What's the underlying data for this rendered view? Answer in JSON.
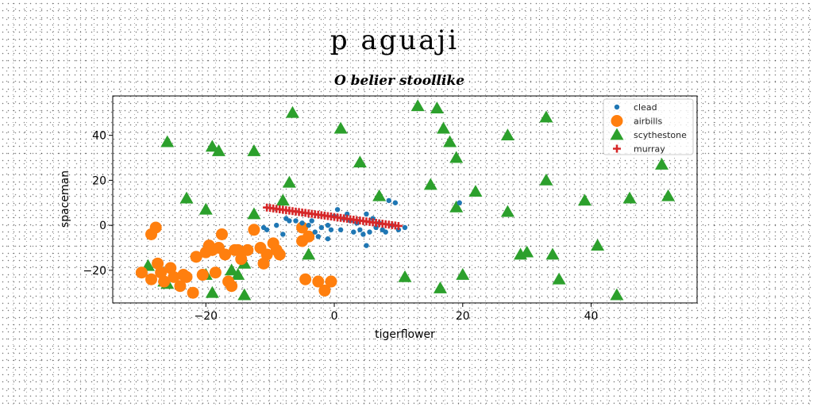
{
  "chart_data": {
    "type": "scatter",
    "title": "p aguaji",
    "subtitle": "O belier stoollike",
    "xlabel": "tigerflower",
    "ylabel": "spaceman",
    "xlim": [
      -34.5,
      56.5
    ],
    "ylim": [
      -34.5,
      57.5
    ],
    "xticks": [
      -20,
      0,
      20,
      40
    ],
    "yticks": [
      -20,
      0,
      20,
      40
    ],
    "legend_position": "top-right",
    "series": [
      {
        "name": "clead",
        "marker": "circle-small",
        "color": "#1f77b4",
        "points": [
          [
            -11,
            -1
          ],
          [
            -10.5,
            -2
          ],
          [
            -9,
            0
          ],
          [
            -8,
            -4
          ],
          [
            -7.5,
            3
          ],
          [
            -7,
            2
          ],
          [
            -6,
            2
          ],
          [
            -5,
            1
          ],
          [
            -4,
            0
          ],
          [
            -3.5,
            2
          ],
          [
            -3,
            -3
          ],
          [
            -2,
            -1
          ],
          [
            -1,
            0
          ],
          [
            -0.5,
            -2
          ],
          [
            0,
            4
          ],
          [
            0.5,
            7
          ],
          [
            1,
            -2
          ],
          [
            2,
            5
          ],
          [
            2.5,
            2
          ],
          [
            3,
            -3
          ],
          [
            3.5,
            1
          ],
          [
            4,
            -2
          ],
          [
            4.5,
            -4
          ],
          [
            5,
            5
          ],
          [
            5.5,
            -3
          ],
          [
            6,
            3
          ],
          [
            6.5,
            -1
          ],
          [
            7,
            1
          ],
          [
            7.5,
            -2
          ],
          [
            8,
            -3
          ],
          [
            8.5,
            11
          ],
          [
            9,
            0
          ],
          [
            9.5,
            10
          ],
          [
            10,
            -2
          ],
          [
            11,
            -1
          ],
          [
            -2.5,
            -5
          ],
          [
            -1,
            -6
          ],
          [
            5,
            -9
          ],
          [
            1.5,
            3
          ],
          [
            19.5,
            10
          ]
        ]
      },
      {
        "name": "airbills",
        "marker": "circle",
        "color": "#ff7f0e",
        "points": [
          [
            -30,
            -21
          ],
          [
            -28.5,
            -24
          ],
          [
            -28.5,
            -4
          ],
          [
            -27.8,
            -1
          ],
          [
            -27.5,
            -17
          ],
          [
            -27,
            -21
          ],
          [
            -26.5,
            -25
          ],
          [
            -25.5,
            -19
          ],
          [
            -25,
            -23
          ],
          [
            -24,
            -27
          ],
          [
            -23.5,
            -22
          ],
          [
            -23,
            -23
          ],
          [
            -22,
            -30
          ],
          [
            -21.5,
            -14
          ],
          [
            -20.5,
            -22
          ],
          [
            -20,
            -12
          ],
          [
            -19.5,
            -9
          ],
          [
            -19,
            -11
          ],
          [
            -18.5,
            -21
          ],
          [
            -18,
            -10
          ],
          [
            -17.5,
            -4
          ],
          [
            -17,
            -13
          ],
          [
            -16.5,
            -25
          ],
          [
            -16,
            -27
          ],
          [
            -15.5,
            -11
          ],
          [
            -15,
            -11
          ],
          [
            -14.5,
            -15
          ],
          [
            -13.5,
            -11
          ],
          [
            -12.5,
            -2
          ],
          [
            -11.5,
            -10
          ],
          [
            -11,
            -17
          ],
          [
            -10.5,
            -13
          ],
          [
            -9.5,
            -8
          ],
          [
            -9,
            -11
          ],
          [
            -8.5,
            -13
          ],
          [
            -5,
            -1
          ],
          [
            -5,
            -7
          ],
          [
            -4.5,
            -24
          ],
          [
            -4,
            -5
          ],
          [
            -2.5,
            -25
          ],
          [
            -1.5,
            -29
          ],
          [
            -0.5,
            -25
          ]
        ]
      },
      {
        "name": "scythestone",
        "marker": "triangle",
        "color": "#2ca02c",
        "points": [
          [
            -29,
            -18
          ],
          [
            -26.5,
            -25
          ],
          [
            -26,
            37
          ],
          [
            -26,
            -26
          ],
          [
            -23,
            12
          ],
          [
            -20,
            7
          ],
          [
            -20,
            -22
          ],
          [
            -19,
            -30
          ],
          [
            -19,
            35
          ],
          [
            -18,
            33
          ],
          [
            -16,
            -20
          ],
          [
            -15,
            -22
          ],
          [
            -14,
            -31
          ],
          [
            -14,
            -17
          ],
          [
            -12.5,
            33
          ],
          [
            -12.5,
            5
          ],
          [
            -8,
            11
          ],
          [
            -7,
            19
          ],
          [
            -6.5,
            50
          ],
          [
            -4,
            -13
          ],
          [
            1,
            43
          ],
          [
            4,
            28
          ],
          [
            7,
            13
          ],
          [
            11,
            -23
          ],
          [
            13,
            53
          ],
          [
            15,
            18
          ],
          [
            16,
            52
          ],
          [
            16.5,
            -28
          ],
          [
            17,
            43
          ],
          [
            18,
            37
          ],
          [
            19,
            30
          ],
          [
            19,
            8
          ],
          [
            20,
            -22
          ],
          [
            22,
            15
          ],
          [
            27,
            40
          ],
          [
            27,
            6
          ],
          [
            29,
            -13
          ],
          [
            30,
            -12
          ],
          [
            33,
            48
          ],
          [
            33,
            20
          ],
          [
            34,
            -13
          ],
          [
            35,
            -24
          ],
          [
            39,
            11
          ],
          [
            41,
            -9
          ],
          [
            44,
            -31
          ],
          [
            46,
            12
          ],
          [
            51,
            27
          ],
          [
            52,
            13
          ]
        ]
      },
      {
        "name": "murray",
        "marker": "plus",
        "color": "#d62728",
        "points": [
          [
            -10.5,
            7.9
          ],
          [
            -10,
            7.7
          ],
          [
            -9.5,
            7.5
          ],
          [
            -9,
            7.3
          ],
          [
            -8.5,
            7.1
          ],
          [
            -8,
            6.9
          ],
          [
            -7.5,
            6.7
          ],
          [
            -7,
            6.5
          ],
          [
            -6.5,
            6.3
          ],
          [
            -6,
            6.1
          ],
          [
            -5.5,
            5.9
          ],
          [
            -5,
            5.7
          ],
          [
            -4.5,
            5.5
          ],
          [
            -4,
            5.3
          ],
          [
            -3.5,
            5.1
          ],
          [
            -3,
            4.9
          ],
          [
            -2.5,
            4.7
          ],
          [
            -2,
            4.5
          ],
          [
            -1.5,
            4.3
          ],
          [
            -1,
            4.1
          ],
          [
            -0.5,
            3.9
          ],
          [
            0,
            3.7
          ],
          [
            0.5,
            3.5
          ],
          [
            1,
            3.3
          ],
          [
            1.5,
            3.1
          ],
          [
            2,
            2.9
          ],
          [
            2.5,
            2.7
          ],
          [
            3,
            2.5
          ],
          [
            3.5,
            2.3
          ],
          [
            4,
            2.1
          ],
          [
            4.5,
            1.9
          ],
          [
            5,
            1.7
          ],
          [
            5.5,
            1.5
          ],
          [
            6,
            1.3
          ],
          [
            6.5,
            1.1
          ],
          [
            7,
            0.9
          ],
          [
            7.5,
            0.7
          ],
          [
            8,
            0.5
          ],
          [
            8.5,
            0.3
          ],
          [
            9,
            0.1
          ],
          [
            9.5,
            -0.1
          ],
          [
            10,
            -0.3
          ]
        ]
      }
    ]
  }
}
